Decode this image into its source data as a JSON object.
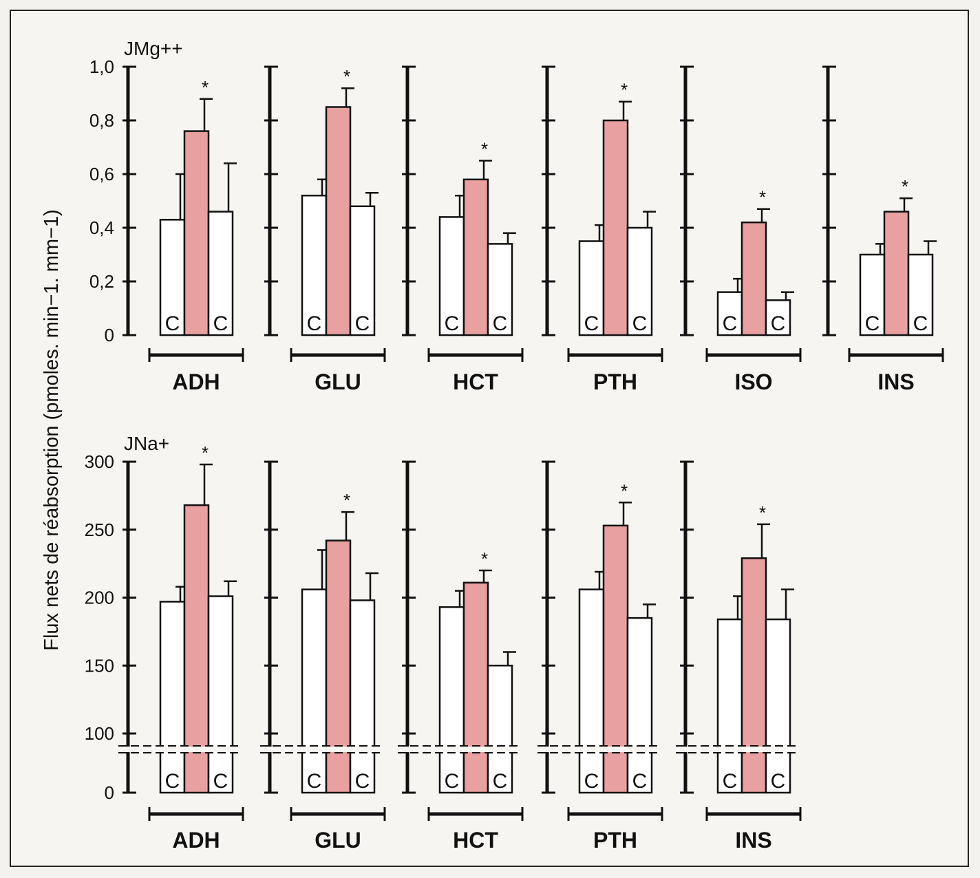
{
  "chart_data": [
    {
      "type": "bar",
      "panel_label": "JMg++",
      "ylabel": "Flux nets de réabsorption (pmoles. min−1. mm−1)",
      "ylim": [
        0,
        1.0
      ],
      "yticks": [
        0,
        0.2,
        0.4,
        0.6,
        0.8,
        1.0
      ],
      "ytick_labels": [
        "0",
        "0,2",
        "0,4",
        "0,6",
        "0,8",
        "1,0"
      ],
      "bar_labels": [
        "C",
        "",
        "C"
      ],
      "significance_marker": "*",
      "colors": {
        "control": "#ffffff",
        "treated": "#e8a0a0",
        "stroke": "#111111"
      },
      "groups": [
        {
          "name": "ADH",
          "values": [
            0.43,
            0.76,
            0.46
          ],
          "errors": [
            0.17,
            0.12,
            0.18
          ]
        },
        {
          "name": "GLU",
          "values": [
            0.52,
            0.85,
            0.48
          ],
          "errors": [
            0.06,
            0.07,
            0.05
          ]
        },
        {
          "name": "HCT",
          "values": [
            0.44,
            0.58,
            0.34
          ],
          "errors": [
            0.08,
            0.07,
            0.04
          ]
        },
        {
          "name": "PTH",
          "values": [
            0.35,
            0.8,
            0.4
          ],
          "errors": [
            0.06,
            0.07,
            0.06
          ]
        },
        {
          "name": "ISO",
          "values": [
            0.16,
            0.42,
            0.13
          ],
          "errors": [
            0.05,
            0.05,
            0.03
          ]
        },
        {
          "name": "INS",
          "values": [
            0.3,
            0.46,
            0.3
          ],
          "errors": [
            0.04,
            0.05,
            0.05
          ]
        }
      ]
    },
    {
      "type": "bar",
      "panel_label": "JNa+",
      "ylim": [
        0,
        300
      ],
      "axis_break": true,
      "yticks": [
        0,
        100,
        150,
        200,
        250,
        300
      ],
      "ytick_labels": [
        "0",
        "100",
        "150",
        "200",
        "250",
        "300"
      ],
      "bar_labels": [
        "C",
        "",
        "C"
      ],
      "significance_marker": "*",
      "colors": {
        "control": "#ffffff",
        "treated": "#e8a0a0",
        "stroke": "#111111"
      },
      "groups": [
        {
          "name": "ADH",
          "values": [
            197,
            268,
            201
          ],
          "errors": [
            11,
            30,
            11
          ]
        },
        {
          "name": "GLU",
          "values": [
            206,
            242,
            198
          ],
          "errors": [
            29,
            21,
            20
          ]
        },
        {
          "name": "HCT",
          "values": [
            193,
            211,
            150
          ],
          "errors": [
            12,
            9,
            10
          ]
        },
        {
          "name": "PTH",
          "values": [
            206,
            253,
            185
          ],
          "errors": [
            13,
            17,
            10
          ]
        },
        {
          "name": "INS",
          "values": [
            184,
            229,
            184
          ],
          "errors": [
            17,
            25,
            22
          ]
        }
      ]
    }
  ]
}
